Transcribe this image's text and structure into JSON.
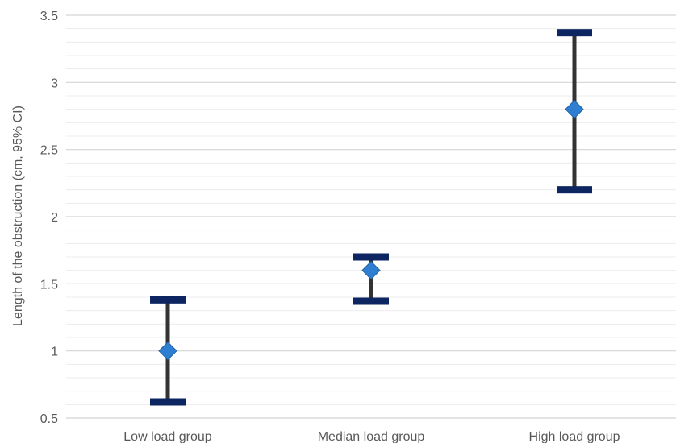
{
  "chart_data": {
    "type": "scatter",
    "title": "",
    "xlabel": "",
    "ylabel": "Length of the obstruction (cm, 95% CI)",
    "categories": [
      "Low load group",
      "Median load group",
      "High load group"
    ],
    "points": [
      {
        "category": "Low load group",
        "value": 1.0,
        "ci_low": 0.62,
        "ci_high": 1.38
      },
      {
        "category": "Median load group",
        "value": 1.6,
        "ci_low": 1.37,
        "ci_high": 1.7
      },
      {
        "category": "High load group",
        "value": 2.8,
        "ci_low": 2.2,
        "ci_high": 3.37
      }
    ],
    "ylim": [
      0.5,
      3.5
    ],
    "yticks": [
      0.5,
      1,
      1.5,
      2,
      2.5,
      3,
      3.5
    ],
    "ytick_labels": [
      "0.5",
      "1",
      "1.5",
      "2",
      "2.5",
      "3",
      "3.5"
    ],
    "grid": true,
    "minor_grid": true,
    "legend": "none",
    "colors": {
      "marker": "#2e7fd1",
      "marker_edge": "#1f5fa3",
      "error_bar": "#333333",
      "cap": "#0d2561",
      "major_grid": "#d4d4d4",
      "minor_grid": "#ececec",
      "text": "#595959"
    }
  }
}
